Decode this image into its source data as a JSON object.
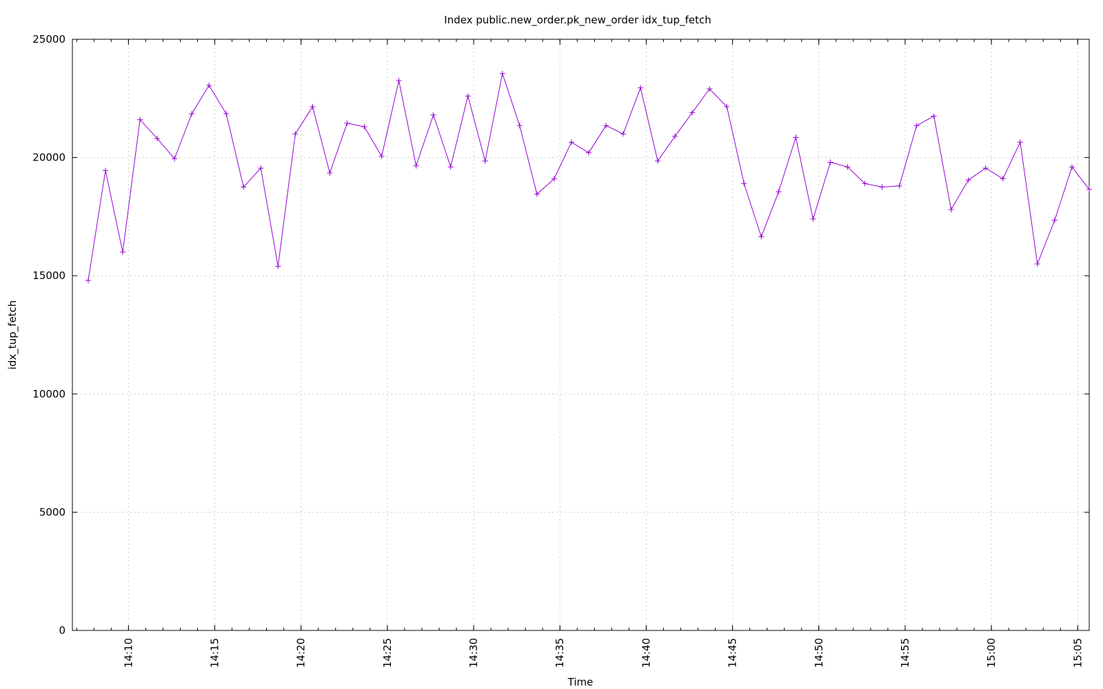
{
  "chart_data": {
    "type": "line",
    "title": "Index public.new_order.pk_new_order idx_tup_fetch",
    "xlabel": "Time",
    "ylabel": "idx_tup_fetch",
    "ylim": [
      0,
      25000
    ],
    "xlim": [
      "14:06:45",
      "15:05:40"
    ],
    "grid": true,
    "legend": "none",
    "y_ticks": [
      0,
      5000,
      10000,
      15000,
      20000,
      25000
    ],
    "x_ticks": [
      "14:10",
      "14:15",
      "14:20",
      "14:25",
      "14:30",
      "14:35",
      "14:40",
      "14:45",
      "14:50",
      "14:55",
      "15:00",
      "15:05"
    ],
    "series": [
      {
        "color": "#9400d3",
        "marker": "plus",
        "x": [
          "14:07:40",
          "14:08:40",
          "14:09:40",
          "14:10:40",
          "14:11:40",
          "14:12:40",
          "14:13:40",
          "14:14:40",
          "14:15:40",
          "14:16:40",
          "14:17:40",
          "14:18:40",
          "14:19:40",
          "14:20:40",
          "14:21:40",
          "14:22:40",
          "14:23:40",
          "14:24:40",
          "14:25:40",
          "14:26:40",
          "14:27:40",
          "14:28:40",
          "14:29:40",
          "14:30:40",
          "14:31:40",
          "14:32:40",
          "14:33:40",
          "14:34:40",
          "14:35:40",
          "14:36:40",
          "14:37:40",
          "14:38:40",
          "14:39:40",
          "14:40:40",
          "14:41:40",
          "14:42:40",
          "14:43:40",
          "14:44:40",
          "14:45:40",
          "14:46:40",
          "14:47:40",
          "14:48:40",
          "14:49:40",
          "14:50:40",
          "14:51:40",
          "14:52:40",
          "14:53:40",
          "14:54:40",
          "14:55:40",
          "14:56:40",
          "14:57:40",
          "14:58:40",
          "14:59:40",
          "15:00:40",
          "15:01:40",
          "15:02:40",
          "15:03:40",
          "15:04:40",
          "15:05:40"
        ],
        "values": [
          14800,
          19450,
          16000,
          21600,
          20800,
          19950,
          21850,
          23050,
          21850,
          18750,
          19550,
          15400,
          21000,
          22150,
          19350,
          21450,
          21300,
          20050,
          23250,
          19650,
          21800,
          19600,
          22600,
          19850,
          23550,
          21350,
          18450,
          19100,
          20650,
          20200,
          21350,
          21000,
          22950,
          19850,
          20900,
          21900,
          22900,
          22150,
          18900,
          16650,
          18550,
          20850,
          17400,
          19800,
          19600,
          18900,
          18750,
          18800,
          21350,
          21750,
          17800,
          19050,
          19550,
          19100,
          20650,
          15500,
          17350,
          19600,
          18650
        ]
      }
    ]
  }
}
